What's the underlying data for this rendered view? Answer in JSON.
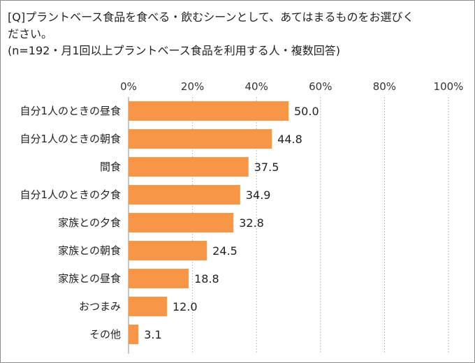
{
  "question": {
    "line1": "[Q]プラントベース食品を食べる・飲むシーンとして、あてはまるものをお選びく",
    "line2": "ださい。",
    "line3": "(n=192・月1回以上プラントベース食品を利用する人・複数回答)"
  },
  "chart_data": {
    "type": "bar",
    "orientation": "horizontal",
    "categories": [
      "自分1人のときの昼食",
      "自分1人のときの朝食",
      "間食",
      "自分1人のときの夕食",
      "家族との夕食",
      "家族との朝食",
      "家族との昼食",
      "おつまみ",
      "その他"
    ],
    "values": [
      50.0,
      44.8,
      37.5,
      34.9,
      32.8,
      24.5,
      18.8,
      12.0,
      3.1
    ],
    "value_labels": [
      "50.0",
      "44.8",
      "37.5",
      "34.9",
      "32.8",
      "24.5",
      "18.8",
      "12.0",
      "3.1"
    ],
    "xlim": [
      0,
      100
    ],
    "ticks": [
      0,
      20,
      40,
      60,
      80,
      100
    ],
    "tick_labels": [
      "0%",
      "20%",
      "40%",
      "60%",
      "80%",
      "100%"
    ],
    "axis_position": "top",
    "grid": true,
    "legend": "none",
    "bar_color": "#f79646",
    "grid_color": "#bfbfbf"
  }
}
